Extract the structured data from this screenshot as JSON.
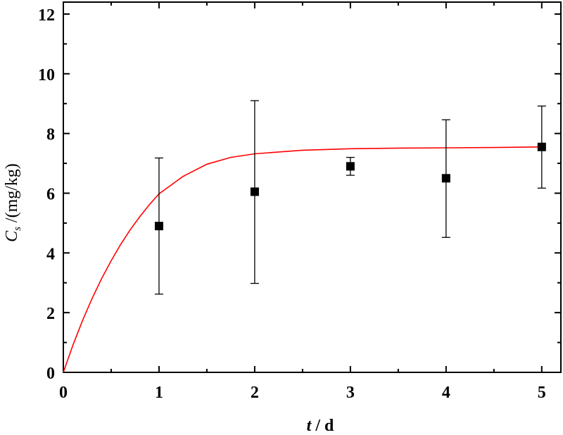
{
  "chart_data": {
    "type": "scatter",
    "xlabel": {
      "var": "t",
      "sep": " / ",
      "unit": "d"
    },
    "ylabel": {
      "var": "C",
      "sub": "s",
      "unit": " /(mg/kg)"
    },
    "xlim": [
      0,
      5.2
    ],
    "ylim": [
      0,
      12.4
    ],
    "xticks": [
      0,
      1,
      2,
      3,
      4,
      5
    ],
    "yticks": [
      0,
      2,
      4,
      6,
      8,
      10,
      12
    ],
    "grid": false,
    "legend": "none",
    "series": [
      {
        "kind": "points",
        "marker": "square",
        "color": "#000000",
        "x": [
          1,
          2,
          3,
          4,
          5
        ],
        "y": [
          4.9,
          6.05,
          6.9,
          6.5,
          7.55
        ],
        "err_low": [
          2.62,
          2.98,
          6.6,
          4.52,
          6.17
        ],
        "err_high": [
          7.18,
          9.1,
          7.2,
          8.46,
          8.92
        ]
      },
      {
        "kind": "fit_curve",
        "color": "#ff0000",
        "x": [
          0,
          0.1,
          0.2,
          0.3,
          0.4,
          0.5,
          0.6,
          0.7,
          0.8,
          0.9,
          1.0,
          1.25,
          1.5,
          1.75,
          2.0,
          2.5,
          3.0,
          3.5,
          4.0,
          4.5,
          5.0
        ],
        "y": [
          0,
          0.91,
          1.73,
          2.47,
          3.14,
          3.74,
          4.29,
          4.78,
          5.22,
          5.62,
          5.98,
          6.56,
          6.97,
          7.2,
          7.32,
          7.44,
          7.49,
          7.51,
          7.52,
          7.53,
          7.55
        ]
      }
    ]
  }
}
